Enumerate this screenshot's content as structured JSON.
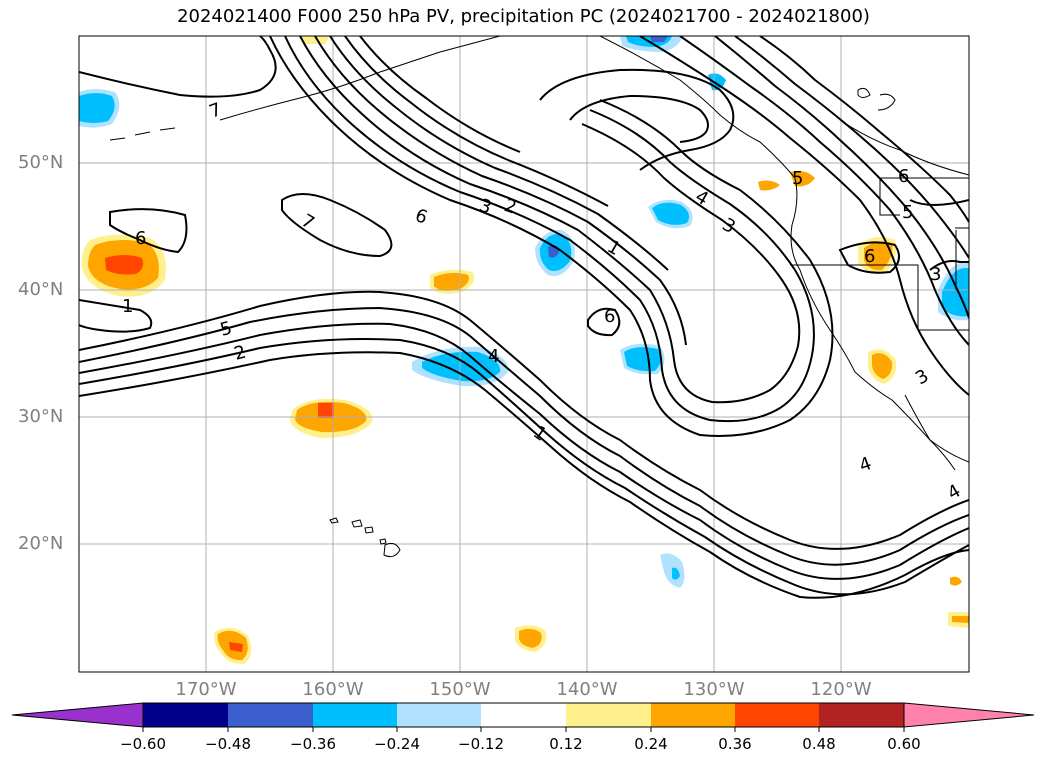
{
  "title": "2024021400 F000 250 hPa PV, precipitation PC (2024021700 - 2024021800)",
  "map": {
    "lat_labels": [
      "50°N",
      "40°N",
      "30°N",
      "20°N"
    ],
    "lon_labels": [
      "170°W",
      "160°W",
      "150°W",
      "140°W",
      "130°W",
      "120°W"
    ],
    "gridlines": true,
    "pv_contour_levels": [
      1,
      2,
      3,
      4,
      5,
      6,
      7
    ],
    "contour_labels": [
      "7",
      "6",
      "3",
      "2",
      "1",
      "4",
      "3",
      "6",
      "5",
      "2",
      "4",
      "1",
      "6",
      "7",
      "6",
      "4",
      "3",
      "5",
      "1",
      "6",
      "3",
      "4",
      "5"
    ]
  },
  "colorbar": {
    "ticks": [
      "−0.60",
      "−0.48",
      "−0.36",
      "−0.24",
      "−0.12",
      "0.12",
      "0.24",
      "0.36",
      "0.48",
      "0.60"
    ],
    "colors": [
      "#9932cc",
      "#00008b",
      "#3a5fcd",
      "#00bfff",
      "#b0e2ff",
      "#ffffff",
      "#fff08c",
      "#ffa500",
      "#ff4500",
      "#b22222",
      "#ff82ab"
    ]
  }
}
